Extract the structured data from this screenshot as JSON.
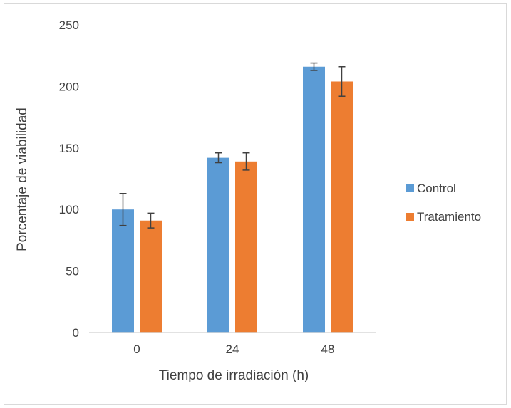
{
  "chart_data": {
    "type": "bar",
    "title": "",
    "xlabel": "Tiempo de irradiación (h)",
    "ylabel": "Porcentaje de viabilidad",
    "categories": [
      "0",
      "24",
      "48"
    ],
    "ylim": [
      0,
      250
    ],
    "yticks": [
      "0",
      "50",
      "100",
      "150",
      "200",
      "250"
    ],
    "grid": false,
    "legend_position": "right",
    "series": [
      {
        "name": "Control",
        "color": "#5b9bd5",
        "values": [
          100,
          142,
          216
        ],
        "error": [
          13,
          4,
          3
        ]
      },
      {
        "name": "Tratamiento",
        "color": "#ed7d31",
        "values": [
          91,
          139,
          204
        ],
        "error": [
          6,
          7,
          12
        ]
      }
    ]
  }
}
